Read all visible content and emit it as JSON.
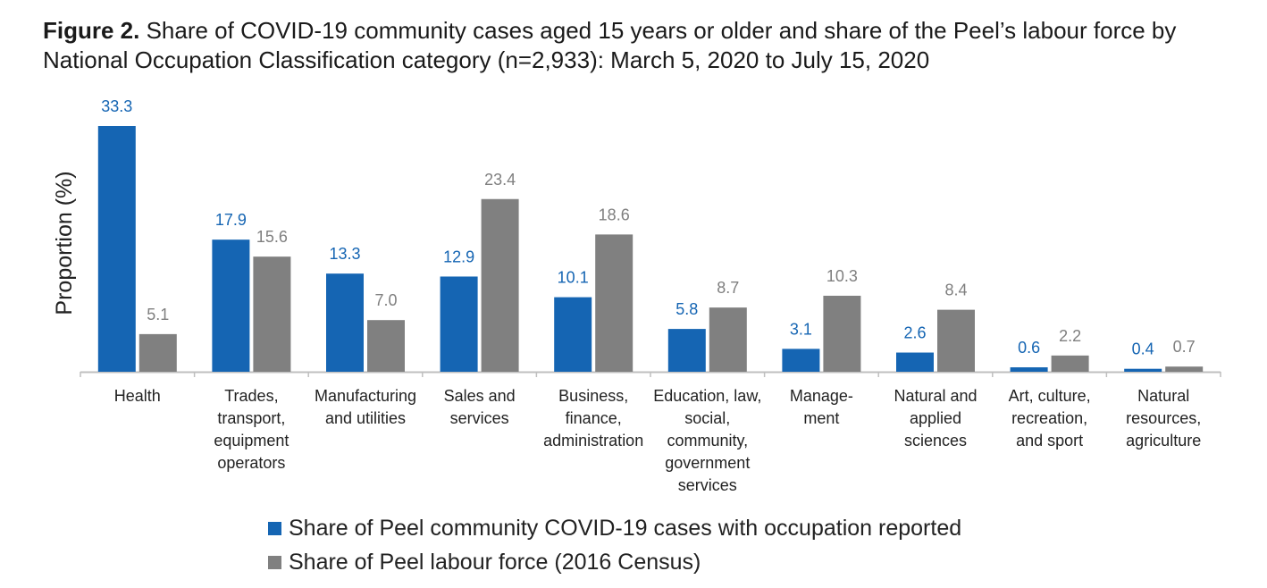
{
  "figure": {
    "label": "Figure 2.",
    "title": " Share of COVID-19 community cases aged 15 years or older and share of the Peel’s labour force by National Occupation Classification category (n=2,933): March 5, 2020 to July 15, 2020"
  },
  "colors": {
    "series1": "#1565b3",
    "series2": "#808080",
    "axis": "#bfbfbf"
  },
  "chart_data": {
    "type": "bar",
    "ylabel": "Proportion (%)",
    "xlabel": "",
    "ylim": [
      0,
      33.3
    ],
    "grid": false,
    "legend_position": "bottom",
    "categories": [
      [
        "Health"
      ],
      [
        "Trades,",
        "transport,",
        "equipment",
        "operators"
      ],
      [
        "Manufacturing",
        "and utilities"
      ],
      [
        "Sales and",
        "services"
      ],
      [
        "Business,",
        "finance,",
        "administration"
      ],
      [
        "Education, law,",
        "social,",
        "community,",
        "government",
        "services"
      ],
      [
        "Manage-",
        "ment"
      ],
      [
        "Natural and",
        "applied",
        "sciences"
      ],
      [
        "Art, culture,",
        "recreation,",
        "and sport"
      ],
      [
        "Natural",
        "resources,",
        "agriculture"
      ]
    ],
    "series": [
      {
        "name": "Share of Peel community COVID-19 cases with occupation reported",
        "values": [
          33.3,
          17.9,
          13.3,
          12.9,
          10.1,
          5.8,
          3.1,
          2.6,
          0.6,
          0.4
        ],
        "labels": [
          "33.3",
          "17.9",
          "13.3",
          "12.9",
          "10.1",
          "5.8",
          "3.1",
          "2.6",
          "0.6",
          "0.4"
        ]
      },
      {
        "name": "Share of Peel labour force (2016 Census)",
        "values": [
          5.1,
          15.6,
          7.0,
          23.4,
          18.6,
          8.7,
          10.3,
          8.4,
          2.2,
          0.7
        ],
        "labels": [
          "5.1",
          "15.6",
          "7.0",
          "23.4",
          "18.6",
          "8.7",
          "10.3",
          "8.4",
          "2.2",
          "0.7"
        ]
      }
    ]
  }
}
